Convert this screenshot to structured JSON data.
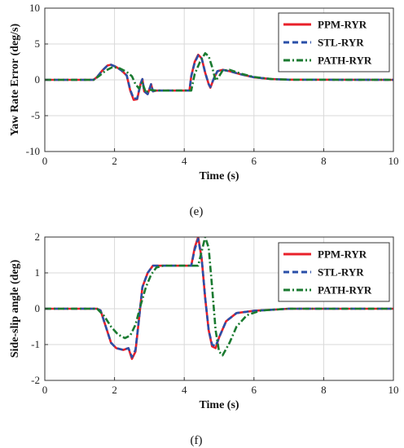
{
  "chart_data": [
    {
      "type": "line",
      "caption": "(e)",
      "xlabel": "Time (s)",
      "ylabel": "Yaw Rate Error (deg/s)",
      "xlim": [
        0,
        10
      ],
      "ylim": [
        -10,
        10
      ],
      "xticks": [
        0,
        2,
        4,
        6,
        8,
        10
      ],
      "yticks": [
        -10,
        -5,
        0,
        5,
        10
      ],
      "grid": true,
      "legend_position": "top-right",
      "series": [
        {
          "name": "PPM-RYR",
          "color": "#e8202a",
          "dash": "solid",
          "points": [
            [
              0,
              0
            ],
            [
              1.4,
              0
            ],
            [
              1.5,
              0.4
            ],
            [
              1.65,
              1.3
            ],
            [
              1.8,
              2.0
            ],
            [
              1.9,
              2.1
            ],
            [
              2.05,
              1.8
            ],
            [
              2.2,
              1.3
            ],
            [
              2.35,
              0.6
            ],
            [
              2.45,
              -1.5
            ],
            [
              2.55,
              -2.8
            ],
            [
              2.65,
              -2.7
            ],
            [
              2.75,
              -0.5
            ],
            [
              2.8,
              0.1
            ],
            [
              2.85,
              -1.6
            ],
            [
              2.95,
              -2.0
            ],
            [
              3.05,
              -0.6
            ],
            [
              3.1,
              -1.6
            ],
            [
              3.2,
              -1.5
            ],
            [
              4.15,
              -1.5
            ],
            [
              4.2,
              0.5
            ],
            [
              4.3,
              2.5
            ],
            [
              4.4,
              3.5
            ],
            [
              4.5,
              3.0
            ],
            [
              4.6,
              1.0
            ],
            [
              4.7,
              -0.6
            ],
            [
              4.75,
              -1.1
            ],
            [
              4.85,
              0.2
            ],
            [
              4.95,
              1.2
            ],
            [
              5.1,
              1.4
            ],
            [
              5.3,
              1.2
            ],
            [
              5.6,
              0.8
            ],
            [
              6.0,
              0.35
            ],
            [
              6.5,
              0.1
            ],
            [
              7.0,
              0.02
            ],
            [
              10,
              0
            ]
          ]
        },
        {
          "name": "STL-RYR",
          "color": "#2a4fa8",
          "dash": "dashed",
          "points": [
            [
              0,
              0
            ],
            [
              1.4,
              0
            ],
            [
              1.5,
              0.4
            ],
            [
              1.65,
              1.3
            ],
            [
              1.8,
              2.0
            ],
            [
              1.9,
              2.1
            ],
            [
              2.05,
              1.8
            ],
            [
              2.2,
              1.3
            ],
            [
              2.35,
              0.6
            ],
            [
              2.45,
              -1.4
            ],
            [
              2.55,
              -2.6
            ],
            [
              2.65,
              -2.6
            ],
            [
              2.75,
              -0.5
            ],
            [
              2.8,
              0.1
            ],
            [
              2.85,
              -1.6
            ],
            [
              2.95,
              -2.0
            ],
            [
              3.05,
              -0.6
            ],
            [
              3.1,
              -1.6
            ],
            [
              3.2,
              -1.5
            ],
            [
              4.15,
              -1.5
            ],
            [
              4.2,
              0.5
            ],
            [
              4.3,
              2.4
            ],
            [
              4.4,
              3.4
            ],
            [
              4.5,
              3.0
            ],
            [
              4.6,
              1.0
            ],
            [
              4.7,
              -0.6
            ],
            [
              4.75,
              -1.0
            ],
            [
              4.85,
              0.2
            ],
            [
              4.95,
              1.2
            ],
            [
              5.1,
              1.4
            ],
            [
              5.3,
              1.2
            ],
            [
              5.6,
              0.8
            ],
            [
              6.0,
              0.35
            ],
            [
              6.5,
              0.1
            ],
            [
              7.0,
              0.02
            ],
            [
              10,
              0
            ]
          ]
        },
        {
          "name": "PATH-RYR",
          "color": "#1a7a30",
          "dash": "dashdot",
          "points": [
            [
              0,
              0
            ],
            [
              1.4,
              0
            ],
            [
              1.55,
              0.5
            ],
            [
              1.75,
              1.3
            ],
            [
              1.95,
              1.8
            ],
            [
              2.15,
              1.6
            ],
            [
              2.35,
              1.1
            ],
            [
              2.5,
              0.5
            ],
            [
              2.6,
              -0.6
            ],
            [
              2.7,
              -1.2
            ],
            [
              2.8,
              -0.4
            ],
            [
              2.9,
              -1.8
            ],
            [
              3.0,
              -1.4
            ],
            [
              3.2,
              -1.5
            ],
            [
              4.2,
              -1.5
            ],
            [
              4.3,
              0.8
            ],
            [
              4.45,
              2.5
            ],
            [
              4.6,
              3.7
            ],
            [
              4.7,
              3.3
            ],
            [
              4.8,
              1.8
            ],
            [
              4.9,
              -0.1
            ],
            [
              5.0,
              0.5
            ],
            [
              5.1,
              1.3
            ],
            [
              5.3,
              1.4
            ],
            [
              5.6,
              0.9
            ],
            [
              6.0,
              0.4
            ],
            [
              6.5,
              0.1
            ],
            [
              7.0,
              0.02
            ],
            [
              10,
              0
            ]
          ]
        }
      ]
    },
    {
      "type": "line",
      "caption": "(f)",
      "xlabel": "Time (s)",
      "ylabel": "Side-slip angle (deg)",
      "xlim": [
        0,
        10
      ],
      "ylim": [
        -2,
        2
      ],
      "xticks": [
        0,
        2,
        4,
        6,
        8,
        10
      ],
      "yticks": [
        -2,
        -1,
        0,
        1,
        2
      ],
      "grid": true,
      "legend_position": "top-right",
      "series": [
        {
          "name": "PPM-RYR",
          "color": "#e8202a",
          "dash": "solid",
          "points": [
            [
              0,
              0
            ],
            [
              1.5,
              0
            ],
            [
              1.6,
              -0.05
            ],
            [
              1.75,
              -0.5
            ],
            [
              1.9,
              -0.95
            ],
            [
              2.05,
              -1.1
            ],
            [
              2.25,
              -1.15
            ],
            [
              2.4,
              -1.1
            ],
            [
              2.5,
              -1.4
            ],
            [
              2.6,
              -1.2
            ],
            [
              2.7,
              -0.3
            ],
            [
              2.8,
              0.6
            ],
            [
              2.95,
              1.0
            ],
            [
              3.1,
              1.2
            ],
            [
              3.3,
              1.2
            ],
            [
              4.2,
              1.2
            ],
            [
              4.3,
              1.7
            ],
            [
              4.4,
              2.0
            ],
            [
              4.5,
              1.4
            ],
            [
              4.6,
              0.3
            ],
            [
              4.7,
              -0.6
            ],
            [
              4.8,
              -1.05
            ],
            [
              4.9,
              -1.1
            ],
            [
              5.0,
              -0.8
            ],
            [
              5.2,
              -0.35
            ],
            [
              5.5,
              -0.12
            ],
            [
              6.0,
              -0.06
            ],
            [
              7.0,
              0
            ],
            [
              10,
              0
            ]
          ]
        },
        {
          "name": "STL-RYR",
          "color": "#2a4fa8",
          "dash": "dashed",
          "points": [
            [
              0,
              0
            ],
            [
              1.5,
              0
            ],
            [
              1.6,
              -0.05
            ],
            [
              1.75,
              -0.5
            ],
            [
              1.9,
              -0.95
            ],
            [
              2.05,
              -1.1
            ],
            [
              2.25,
              -1.15
            ],
            [
              2.4,
              -1.1
            ],
            [
              2.5,
              -1.35
            ],
            [
              2.6,
              -1.15
            ],
            [
              2.7,
              -0.3
            ],
            [
              2.8,
              0.6
            ],
            [
              2.95,
              1.0
            ],
            [
              3.1,
              1.2
            ],
            [
              3.3,
              1.2
            ],
            [
              4.2,
              1.2
            ],
            [
              4.3,
              1.65
            ],
            [
              4.4,
              1.95
            ],
            [
              4.5,
              1.4
            ],
            [
              4.6,
              0.3
            ],
            [
              4.7,
              -0.6
            ],
            [
              4.8,
              -1.0
            ],
            [
              4.9,
              -1.05
            ],
            [
              5.0,
              -0.8
            ],
            [
              5.2,
              -0.35
            ],
            [
              5.5,
              -0.12
            ],
            [
              6.0,
              -0.06
            ],
            [
              7.0,
              0
            ],
            [
              10,
              0
            ]
          ]
        },
        {
          "name": "PATH-RYR",
          "color": "#1a7a30",
          "dash": "dashdot",
          "points": [
            [
              0,
              0
            ],
            [
              1.5,
              0
            ],
            [
              1.7,
              -0.2
            ],
            [
              1.9,
              -0.5
            ],
            [
              2.1,
              -0.72
            ],
            [
              2.3,
              -0.82
            ],
            [
              2.45,
              -0.75
            ],
            [
              2.6,
              -0.45
            ],
            [
              2.75,
              0.1
            ],
            [
              2.9,
              0.6
            ],
            [
              3.05,
              0.95
            ],
            [
              3.2,
              1.15
            ],
            [
              3.4,
              1.2
            ],
            [
              4.4,
              1.2
            ],
            [
              4.5,
              1.6
            ],
            [
              4.6,
              2.0
            ],
            [
              4.7,
              1.7
            ],
            [
              4.8,
              0.6
            ],
            [
              4.9,
              -0.6
            ],
            [
              5.0,
              -1.2
            ],
            [
              5.1,
              -1.3
            ],
            [
              5.3,
              -0.95
            ],
            [
              5.5,
              -0.5
            ],
            [
              5.8,
              -0.18
            ],
            [
              6.2,
              -0.05
            ],
            [
              7.0,
              0
            ],
            [
              10,
              0
            ]
          ]
        }
      ]
    }
  ]
}
